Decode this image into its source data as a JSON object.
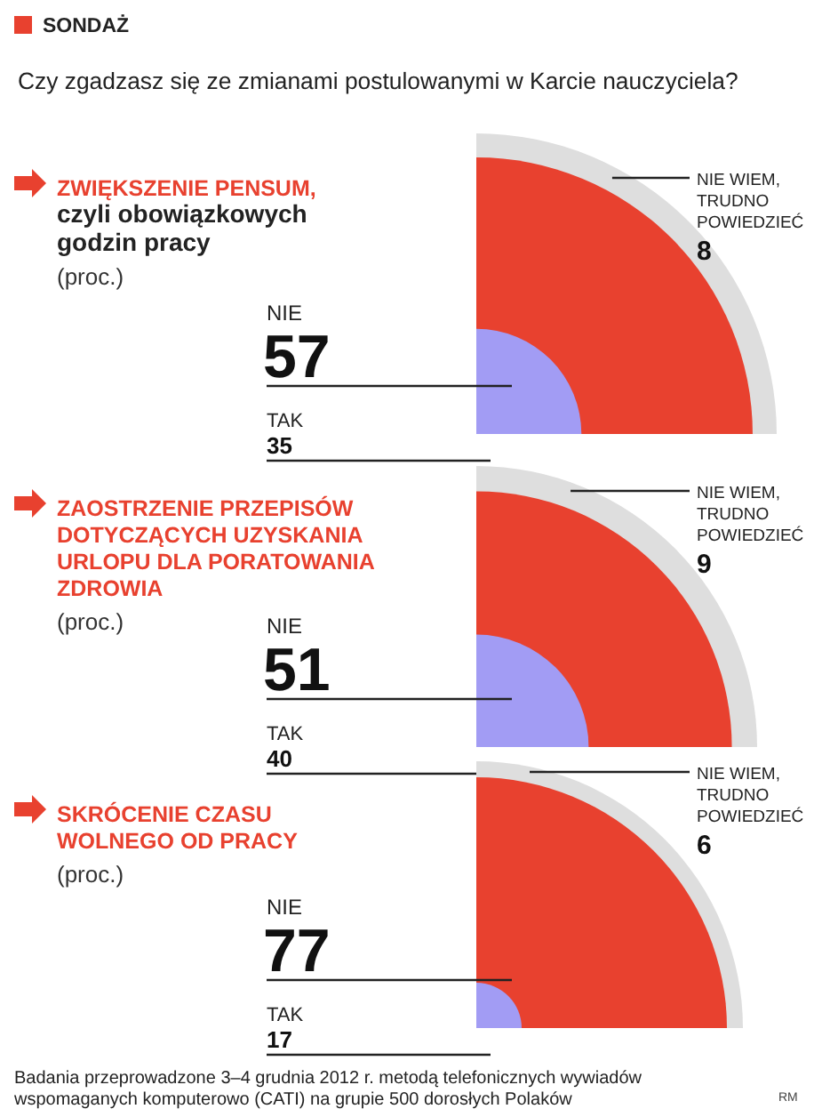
{
  "chart_data": [
    {
      "type": "other",
      "title": "ZWIĘKSZENIE PENSUM,",
      "subtitle": "czyli obowiązkowych godzin pracy",
      "annotations": [
        "(proc.)",
        "SONDAŻ",
        "Czy zgadzasz się ze zmianami postulowanymi w Karcie nauczyciela?"
      ],
      "categories": [
        "TAK",
        "NIE",
        "NIE WIEM, TRUDNO POWIEDZIEĆ"
      ],
      "values": [
        35,
        57,
        8
      ],
      "colors": [
        "#a29cf4",
        "#e8412f",
        "#dedede"
      ],
      "data_labels": true
    },
    {
      "type": "other",
      "title": "ZAOSTRZENIE PRZEPISÓW DOTYCZĄCYCH UZYSKANIA URLOPU DLA PORATOWANIA ZDROWIA",
      "annotations": [
        "(proc.)"
      ],
      "categories": [
        "TAK",
        "NIE",
        "NIE WIEM, TRUDNO POWIEDZIEĆ"
      ],
      "values": [
        40,
        51,
        9
      ],
      "colors": [
        "#a29cf4",
        "#e8412f",
        "#dedede"
      ],
      "data_labels": true
    },
    {
      "type": "other",
      "title": "SKRÓCENIE CZASU WOLNEGO OD PRACY",
      "annotations": [
        "(proc.)",
        "Badania przeprowadzone 3–4 grudnia 2012 r. metodą telefonicznych wywiadów wspomaganych komputerowo (CATI) na grupie 500 dorosłych Polaków",
        "RM"
      ],
      "categories": [
        "TAK",
        "NIE",
        "NIE WIEM, TRUDNO POWIEDZIEĆ"
      ],
      "values": [
        17,
        77,
        6
      ],
      "colors": [
        "#a29cf4",
        "#e8412f",
        "#dedede"
      ],
      "data_labels": true
    }
  ]
}
